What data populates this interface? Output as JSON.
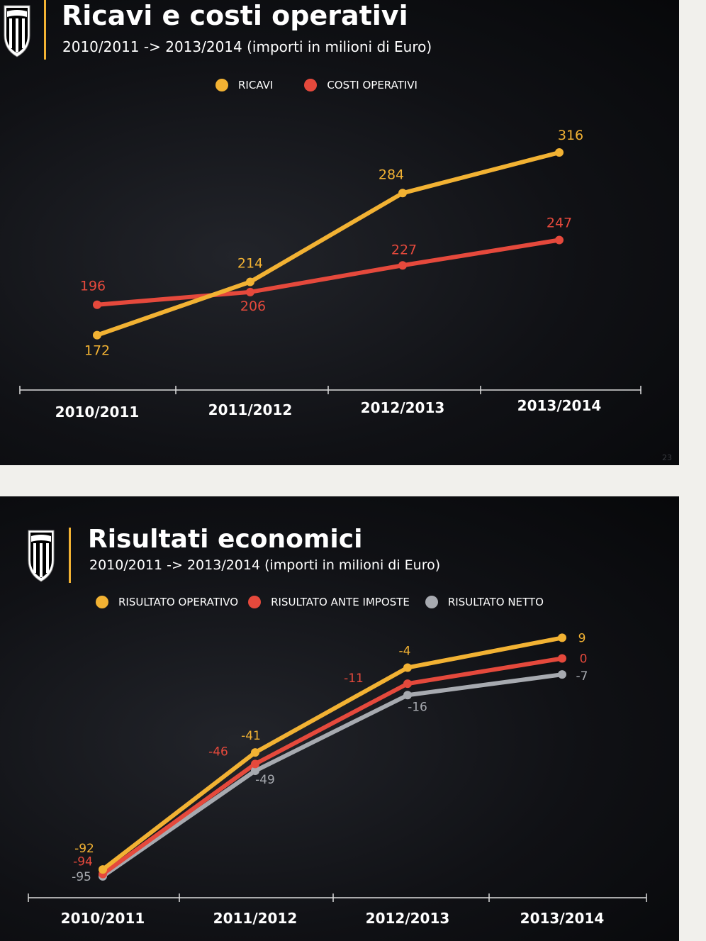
{
  "slides": [
    {
      "title": "Ricavi e costi operativi",
      "subtitle": "2010/2011 -> 2013/2014 (importi in milioni di Euro)",
      "page_number": "23"
    },
    {
      "title": "Risultati economici",
      "subtitle": "2010/2011 -> 2013/2014 (importi in milioni di Euro)"
    }
  ],
  "logo_text": "JUVENTUS",
  "colors": {
    "yellow": "#f2b233",
    "red": "#e5493c",
    "grey": "#a7aab0",
    "background": "#0b0c0f"
  },
  "chart_data": [
    {
      "type": "line",
      "categories": [
        "2010/2011",
        "2011/2012",
        "2012/2013",
        "2013/2014"
      ],
      "series": [
        {
          "name": "RICAVI",
          "color": "#f2b233",
          "values": [
            172,
            214,
            284,
            316
          ]
        },
        {
          "name": "COSTI OPERATIVI",
          "color": "#e5493c",
          "values": [
            196,
            206,
            227,
            247
          ]
        }
      ],
      "ylim": [
        150,
        330
      ],
      "grid": false,
      "legend": "top-center"
    },
    {
      "type": "line",
      "categories": [
        "2010/2011",
        "2011/2012",
        "2012/2013",
        "2013/2014"
      ],
      "series": [
        {
          "name": "RISULTATO OPERATIVO",
          "color": "#f2b233",
          "values": [
            -92,
            -41,
            -4,
            9
          ]
        },
        {
          "name": "RISULTATO ANTE IMPOSTE",
          "color": "#e5493c",
          "values": [
            -94,
            -46,
            -11,
            0
          ]
        },
        {
          "name": "RISULTATO NETTO",
          "color": "#a7aab0",
          "values": [
            -95,
            -49,
            -16,
            -7
          ]
        }
      ],
      "ylim": [
        -100,
        15
      ],
      "grid": false,
      "legend": "top-center"
    }
  ]
}
